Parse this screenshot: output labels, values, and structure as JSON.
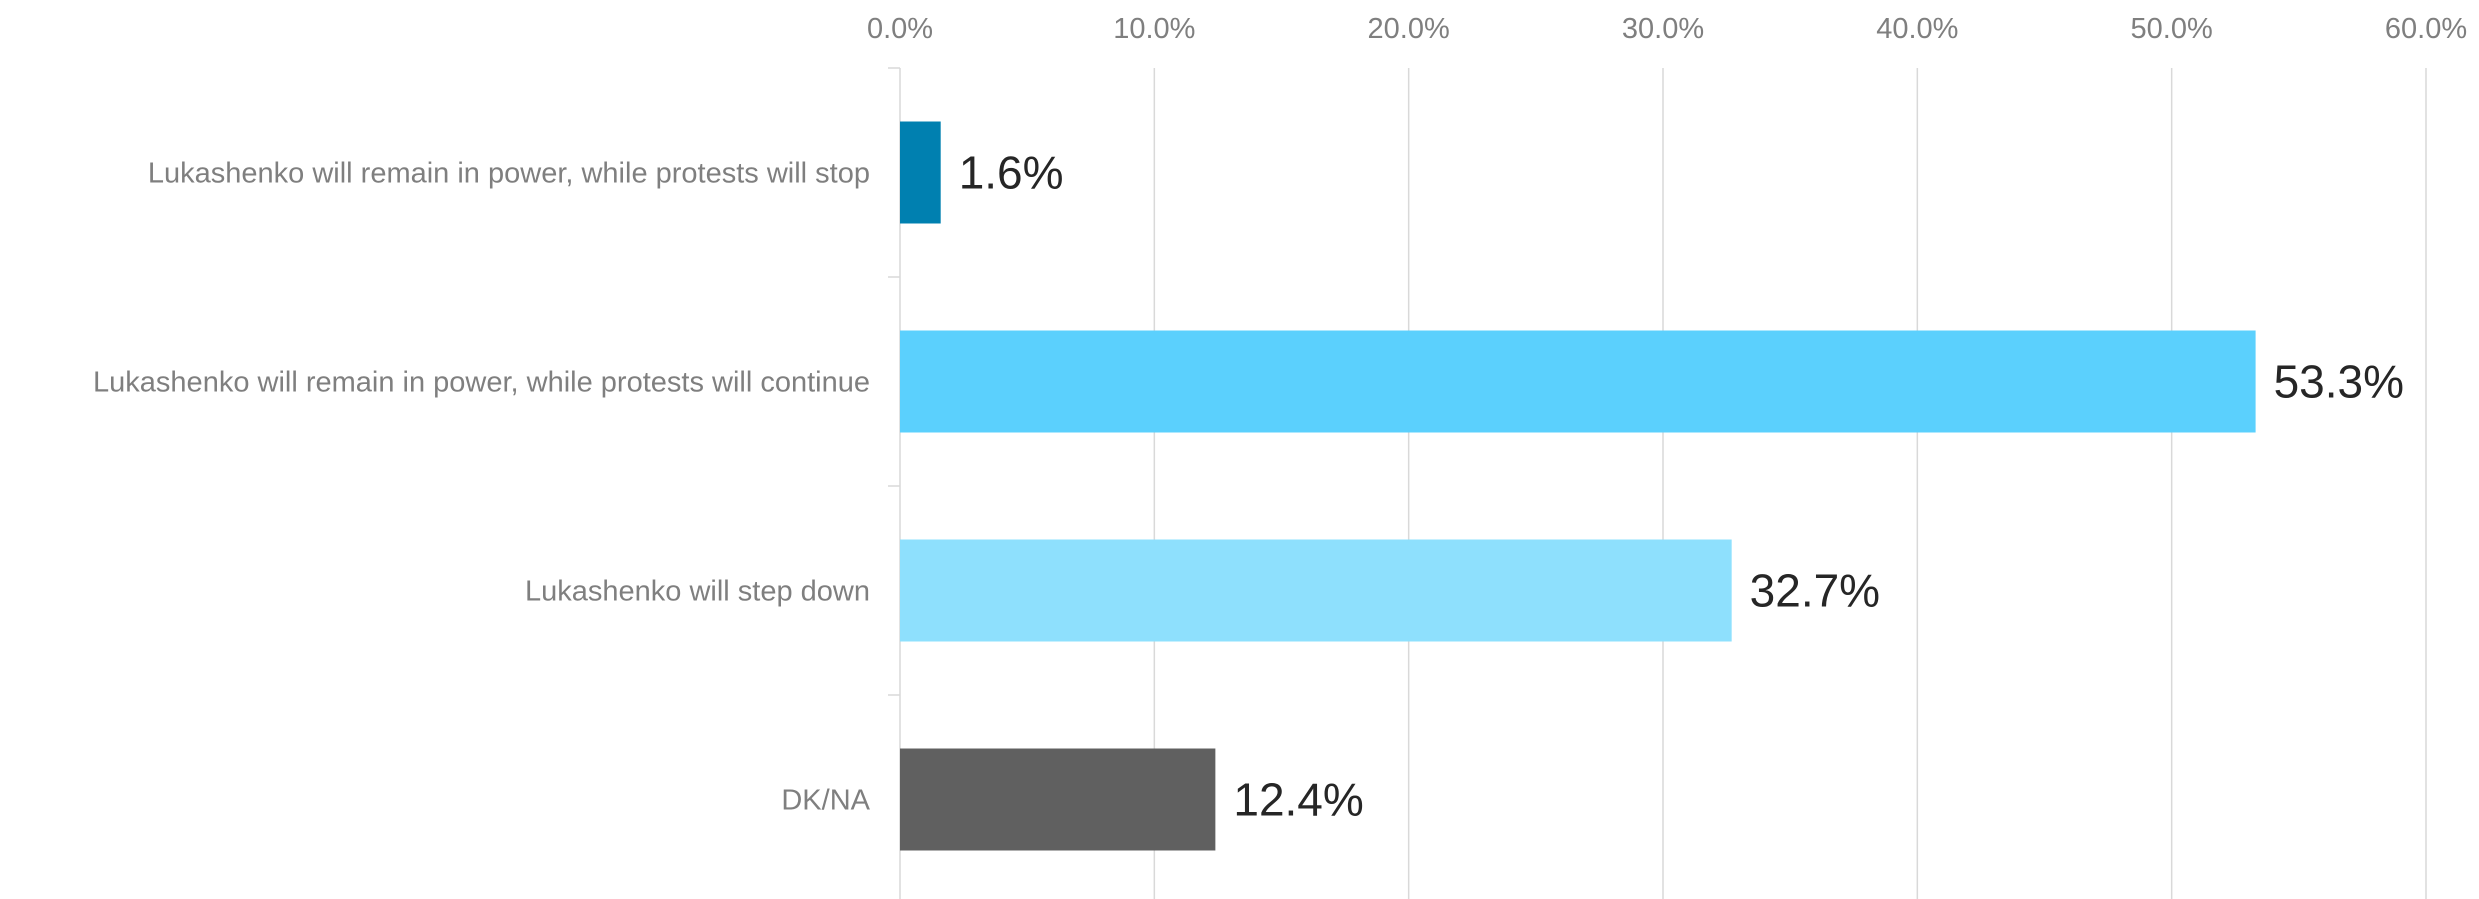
{
  "chart_data": {
    "type": "bar",
    "orientation": "horizontal",
    "categories": [
      "Lukashenko will remain in power, while protests will stop",
      "Lukashenko will remain in power, while protests will continue",
      "Lukashenko will step down",
      "DK/NA"
    ],
    "values": [
      1.6,
      53.3,
      32.7,
      12.4
    ],
    "data_labels": [
      "1.6%",
      "53.3%",
      "32.7%",
      "12.4%"
    ],
    "colors": [
      "#0080b0",
      "#5bd0fd",
      "#8ee0fd",
      "#606060"
    ],
    "xlim": [
      0,
      60
    ],
    "x_ticks": [
      0,
      10,
      20,
      30,
      40,
      50,
      60
    ],
    "x_tick_labels": [
      "0.0%",
      "10.0%",
      "20.0%",
      "30.0%",
      "40.0%",
      "50.0%",
      "60.0%"
    ],
    "x_axis_position": "top",
    "grid": true,
    "legend": "none",
    "title": "",
    "xlabel": "",
    "ylabel": ""
  }
}
